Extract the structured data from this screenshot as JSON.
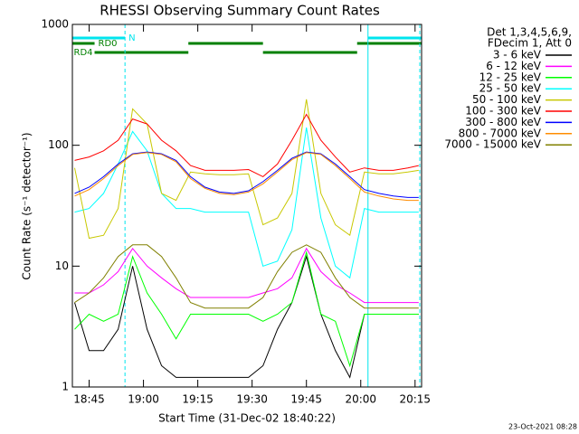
{
  "chart_data": {
    "type": "line",
    "title": "RHESSI Observing Summary Count Rates",
    "x_label": "Start Time (31-Dec-02 18:40:22)",
    "y_label": "Count Rate (s⁻¹ detector⁻¹)",
    "legend_header": [
      "Det 1,3,4,5,6,9,",
      "FDecim 1, Att 0"
    ],
    "timestamp": "23-Oct-2021 08:28",
    "log_y": true,
    "xlim": [
      40.37,
      136.8
    ],
    "xticks": [
      {
        "value": 45,
        "label": "18:45"
      },
      {
        "value": 60,
        "label": "19:00"
      },
      {
        "value": 75,
        "label": "19:15"
      },
      {
        "value": 90,
        "label": "19:30"
      },
      {
        "value": 105,
        "label": "19:45"
      },
      {
        "value": 120,
        "label": "20:00"
      },
      {
        "value": 135,
        "label": "20:15"
      }
    ],
    "ylim": [
      1,
      1000
    ],
    "yticks": [
      1,
      10,
      100,
      1000
    ],
    "flags": [
      {
        "label": "N",
        "color": "#00e5ee",
        "intervals": [
          [
            40.37,
            54.9
          ],
          [
            122,
            136.8
          ]
        ]
      },
      {
        "label": "RD0",
        "color": "#008000",
        "intervals": [
          [
            40.37,
            46.5
          ],
          [
            72.4,
            93
          ],
          [
            119,
            136.8
          ]
        ]
      },
      {
        "label": "RD4",
        "color": "#008000",
        "intervals": [
          [
            46.5,
            72.4
          ],
          [
            93,
            119
          ]
        ]
      }
    ],
    "flag_lines": [
      {
        "x": 54.9,
        "style": "dashed",
        "color": "#00e5ee"
      },
      {
        "x": 122,
        "style": "solid",
        "color": "#00e5ee"
      },
      {
        "x": 136.3,
        "style": "dashed",
        "color": "#00e5ee"
      }
    ],
    "x": [
      41,
      45,
      49,
      53,
      57,
      61,
      65,
      69,
      73,
      77,
      81,
      85,
      89,
      93,
      97,
      101,
      105,
      109,
      113,
      117,
      121,
      125,
      129,
      133,
      136
    ],
    "series": [
      {
        "name": "3 - 6 keV",
        "color": "#000000",
        "values": [
          5,
          2,
          2,
          3,
          10,
          3,
          1.5,
          1.2,
          1.2,
          1.2,
          1.2,
          1.2,
          1.2,
          1.5,
          3,
          5,
          12,
          4,
          2,
          1.2,
          4,
          4,
          4,
          4,
          4
        ]
      },
      {
        "name": "6 - 12 keV",
        "color": "#ff00ff",
        "values": [
          6,
          6,
          7,
          9,
          14,
          10,
          8,
          6.5,
          5.5,
          5.5,
          5.5,
          5.5,
          5.5,
          6,
          6.5,
          8,
          14,
          9,
          7,
          6,
          5,
          5,
          5,
          5,
          5
        ]
      },
      {
        "name": "12 - 25 keV",
        "color": "#00ff00",
        "values": [
          3,
          4,
          3.5,
          4,
          12,
          6,
          4,
          2.5,
          4,
          4,
          4,
          4,
          4,
          3.5,
          4,
          5,
          13,
          4,
          3.5,
          1.5,
          4,
          4,
          4,
          4,
          4
        ]
      },
      {
        "name": "25 - 50 keV",
        "color": "#00ffff",
        "values": [
          28,
          30,
          40,
          70,
          130,
          90,
          40,
          30,
          30,
          28,
          28,
          28,
          28,
          10,
          11,
          20,
          140,
          25,
          10,
          8,
          30,
          28,
          28,
          28,
          28
        ]
      },
      {
        "name": "50 - 100 keV",
        "color": "#c8c800",
        "values": [
          65,
          17,
          18,
          30,
          200,
          150,
          40,
          35,
          60,
          58,
          57,
          57,
          58,
          22,
          25,
          40,
          240,
          40,
          22,
          18,
          60,
          58,
          58,
          60,
          62
        ]
      },
      {
        "name": "100 - 300 keV",
        "color": "#ff0000",
        "values": [
          75,
          80,
          90,
          110,
          165,
          150,
          110,
          90,
          68,
          62,
          62,
          62,
          63,
          55,
          70,
          110,
          180,
          110,
          80,
          60,
          65,
          62,
          62,
          65,
          68
        ]
      },
      {
        "name": "300 - 800 keV",
        "color": "#0000ff",
        "values": [
          40,
          45,
          55,
          70,
          85,
          88,
          85,
          75,
          55,
          45,
          41,
          40,
          42,
          50,
          62,
          78,
          88,
          85,
          70,
          55,
          43,
          40,
          38,
          37,
          37
        ]
      },
      {
        "name": "800 - 7000 keV",
        "color": "#ff8c00",
        "values": [
          38,
          43,
          53,
          68,
          84,
          87,
          84,
          73,
          53,
          44,
          40,
          39,
          41,
          48,
          60,
          76,
          87,
          84,
          68,
          53,
          41,
          38,
          36,
          35,
          35
        ]
      },
      {
        "name": "7000 - 15000 keV",
        "color": "#808000",
        "values": [
          5,
          6,
          8,
          12,
          15,
          15,
          12,
          8,
          5,
          4.5,
          4.5,
          4.5,
          4.5,
          5.5,
          9,
          13,
          15,
          13,
          8,
          5.5,
          4.5,
          4.5,
          4.5,
          4.5,
          4.5
        ]
      }
    ]
  }
}
